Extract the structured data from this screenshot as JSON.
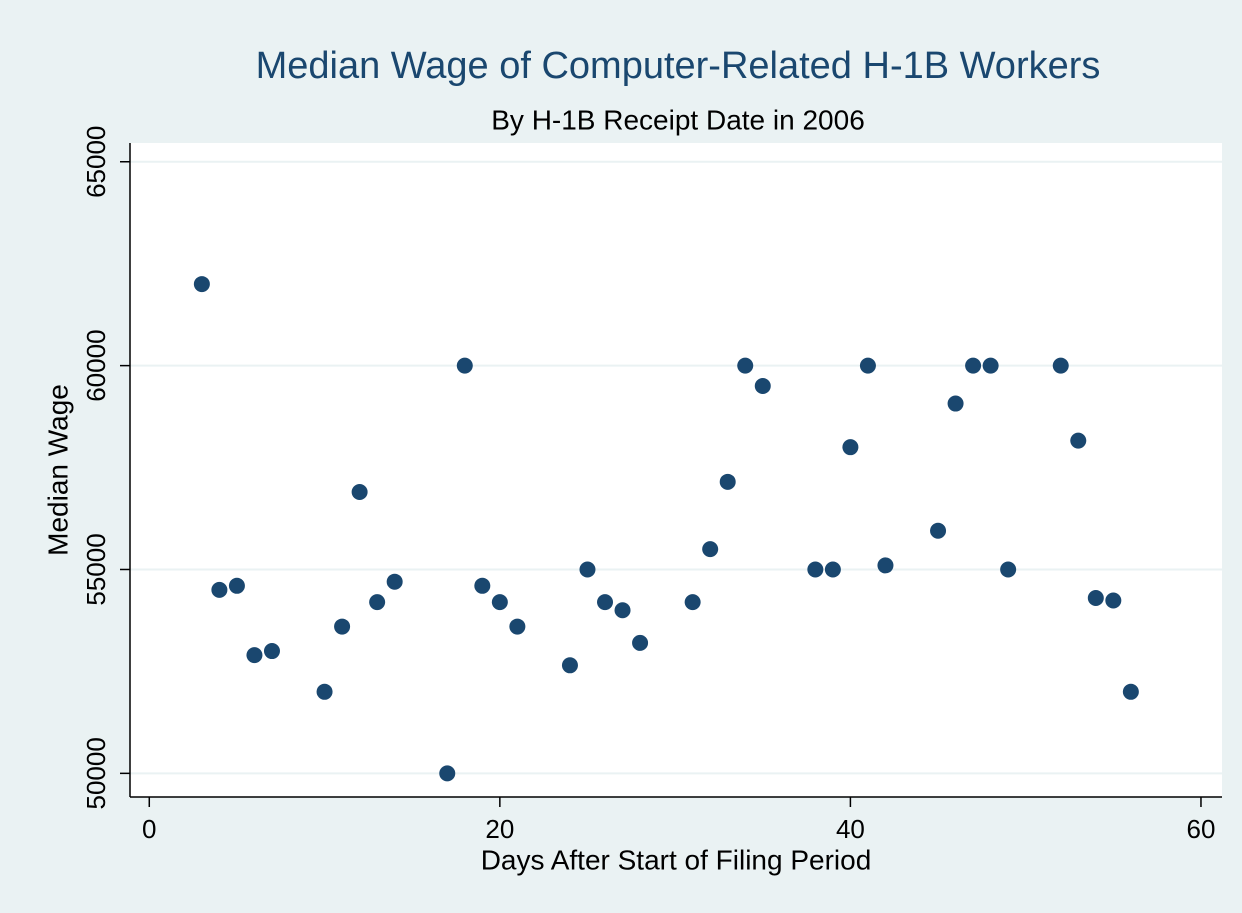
{
  "chart_data": {
    "type": "scatter",
    "title": "Median Wage of Computer-Related H-1B Workers",
    "subtitle": "By H-1B Receipt Date in 2006",
    "x_label": "Days After Start of Filing Period",
    "y_label": "Median Wage",
    "x": [
      3,
      4,
      5,
      6,
      7,
      10,
      11,
      12,
      13,
      14,
      17,
      18,
      19,
      20,
      21,
      24,
      25,
      26,
      27,
      28,
      31,
      32,
      33,
      34,
      35,
      38,
      39,
      40,
      41,
      42,
      45,
      46,
      47,
      48,
      49,
      52,
      53,
      54,
      55,
      56
    ],
    "values": [
      62000,
      54500,
      54600,
      52900,
      53000,
      52000,
      53600,
      56900,
      54200,
      54700,
      50000,
      60000,
      54600,
      54200,
      53600,
      52650,
      55000,
      54200,
      54000,
      53200,
      54200,
      55500,
      57150,
      60000,
      59500,
      55000,
      55000,
      58000,
      60000,
      55100,
      55950,
      59070,
      60000,
      60000,
      55000,
      60000,
      58160,
      54300,
      54240,
      52000
    ],
    "color": "#1a476f",
    "xlim": [
      -1.1,
      61.2
    ],
    "ylim": [
      49420,
      65460
    ],
    "xticks": [
      0,
      20,
      40,
      60
    ],
    "yticks": [
      50000,
      55000,
      60000,
      65000
    ],
    "grid": true
  }
}
